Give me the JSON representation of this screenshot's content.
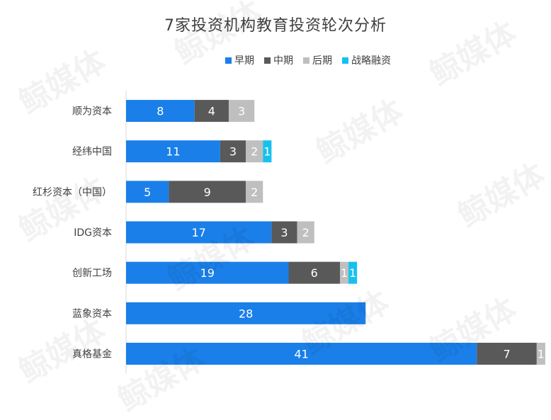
{
  "chart_data": {
    "type": "bar",
    "orientation": "horizontal",
    "stacked": true,
    "title": "7家投资机构教育投资轮次分析",
    "categories": [
      "顺为资本",
      "经纬中国",
      "红杉资本（中国）",
      "IDG资本",
      "创新工场",
      "蓝象资本",
      "真格基金"
    ],
    "series": [
      {
        "name": "早期",
        "color": "#1a7fe8",
        "values": [
          8,
          11,
          5,
          17,
          19,
          28,
          41
        ]
      },
      {
        "name": "中期",
        "color": "#595959",
        "values": [
          4,
          3,
          9,
          3,
          6,
          0,
          7
        ]
      },
      {
        "name": "后期",
        "color": "#bfbfbf",
        "values": [
          3,
          2,
          2,
          2,
          1,
          0,
          1
        ]
      },
      {
        "name": "战略融资",
        "color": "#16c1ee",
        "values": [
          0,
          1,
          0,
          0,
          1,
          0,
          0
        ]
      }
    ],
    "xlim": [
      0,
      49
    ],
    "legend_position": "top",
    "grid": false
  },
  "watermark": "鲸媒体"
}
